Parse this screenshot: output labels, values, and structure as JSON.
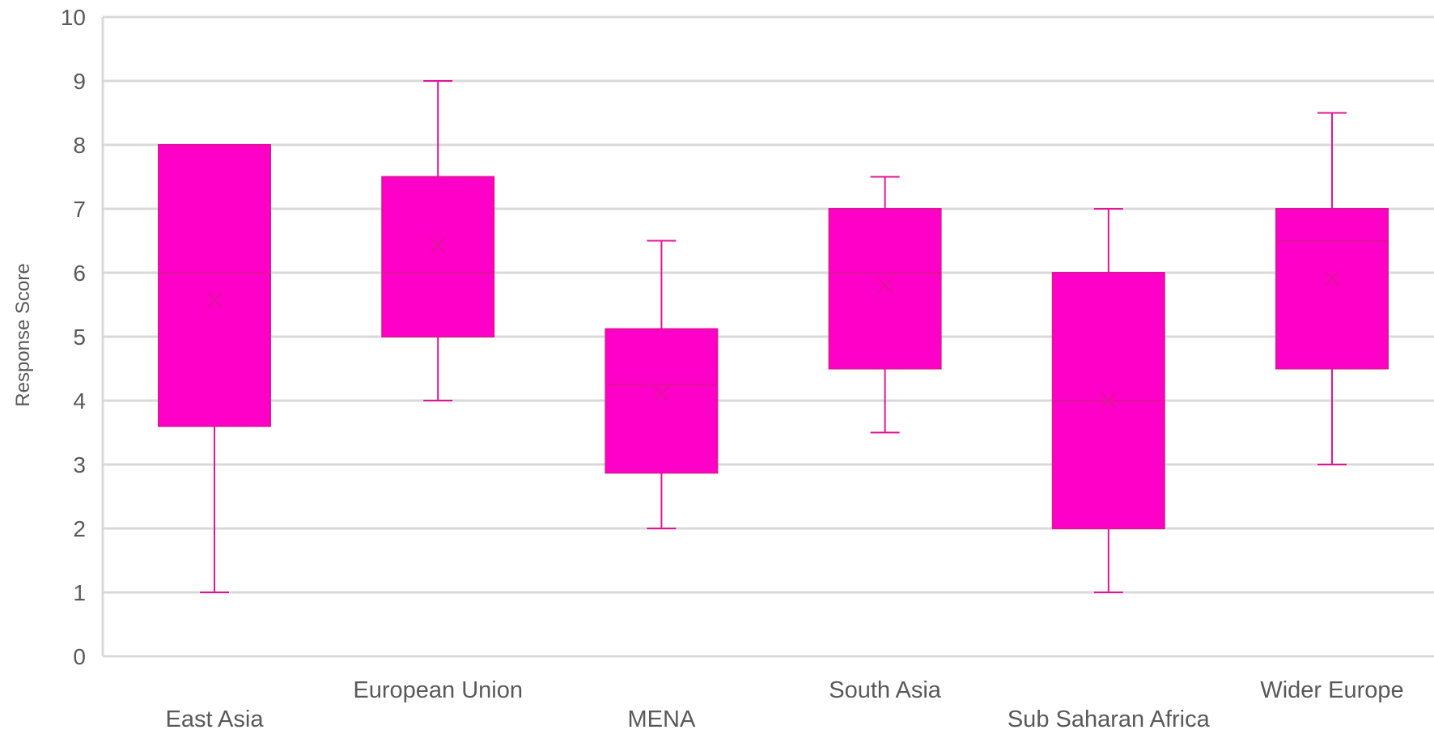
{
  "chart_data": {
    "type": "box",
    "title": "",
    "xlabel": "",
    "ylabel": "Response Score",
    "ylim": [
      0,
      10
    ],
    "yticks": [
      "0",
      "1",
      "2",
      "3",
      "4",
      "5",
      "6",
      "7",
      "8",
      "9",
      "10"
    ],
    "grid": true,
    "legend": "none",
    "color": "#ff00c8",
    "line_color": "#e0149a",
    "categories": [
      "East Asia",
      "European Union",
      "MENA",
      "South Asia",
      "Sub Saharan Africa",
      "Wider Europe"
    ],
    "boxes": [
      {
        "category": "East Asia",
        "min": 1.0,
        "q1": 3.6,
        "median": 6.0,
        "q3": 8.0,
        "max": 8.0,
        "mean": 5.57
      },
      {
        "category": "European Union",
        "min": 4.0,
        "q1": 5.0,
        "median": 6.0,
        "q3": 7.5,
        "max": 9.0,
        "mean": 6.43
      },
      {
        "category": "MENA",
        "min": 2.0,
        "q1": 2.87,
        "median": 4.25,
        "q3": 5.12,
        "max": 6.5,
        "mean": 4.11
      },
      {
        "category": "South Asia",
        "min": 3.5,
        "q1": 4.5,
        "median": 6.0,
        "q3": 7.0,
        "max": 7.5,
        "mean": 5.8
      },
      {
        "category": "Sub Saharan Africa",
        "min": 1.0,
        "q1": 2.0,
        "median": 4.0,
        "q3": 6.0,
        "max": 7.0,
        "mean": 4.0
      },
      {
        "category": "Wider Europe",
        "min": 3.0,
        "q1": 4.5,
        "median": 6.5,
        "q3": 7.0,
        "max": 8.5,
        "mean": 5.92
      }
    ]
  }
}
